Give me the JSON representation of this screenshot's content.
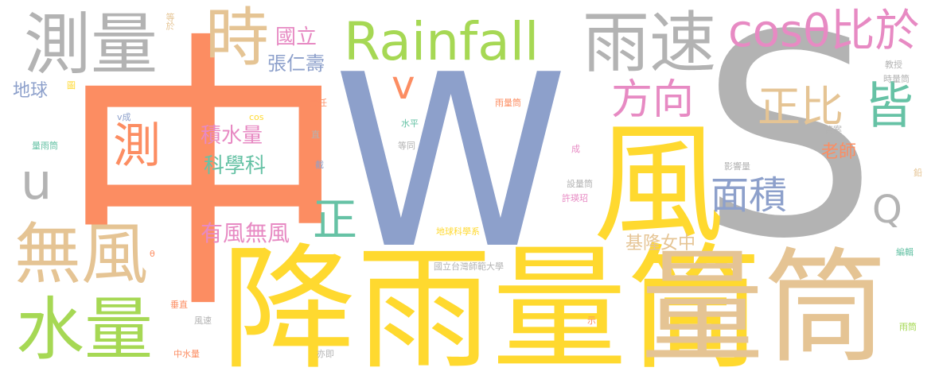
{
  "colors": {
    "orange": "#fc8d62",
    "blue": "#8da0cb",
    "gray": "#b3b3b3",
    "yellow": "#ffd92f",
    "tan": "#e5c494",
    "green": "#a6d854",
    "pink": "#e78ac3",
    "teal": "#66c2a5"
  },
  "words": {
    "zhong": "中",
    "W": "W",
    "S": "S",
    "jiangyu": "降雨量筒",
    "feng": "風",
    "liangtong": "量筒",
    "rainfall": "Rainfall",
    "yusu": "雨速",
    "celiang": "測量",
    "shi": "時",
    "cos_bi": "cosθ比於",
    "shuiliang": "水量",
    "wufeng": "無風",
    "u": "u",
    "Q": "Q",
    "ce": "測",
    "jie": "皆",
    "zhengbi": "正比",
    "fangxiang": "方向",
    "mianji": "面積",
    "zheng": "正",
    "youfeng": "有風無風",
    "jishui": "積水量",
    "kexue": "科學科",
    "guoli": "國立",
    "zhang": "張仁壽",
    "diqiu": "地球",
    "v": "v",
    "keelung": "基隆女中",
    "laoshi": "老師",
    "dengyu": "等於",
    "tu": "圖",
    "vcheng": "v成",
    "cos": "cos",
    "zeren": "責任",
    "zhi": "直",
    "jie2": "截",
    "yuliangtong": "雨量筒",
    "shuiping": "水平",
    "dengtong": "等同",
    "cheng": "成",
    "liangyutong": "量雨筒",
    "jiaoshou": "教授",
    "shiliangtong": "時量筒",
    "daan": "答案",
    "yingxiang": "影響量",
    "qian": "鉛",
    "sheliang": "設量筒",
    "xuying": "許瑛玿",
    "theta": "θ",
    "dqkx": "地球科學系",
    "ntnu": "國立台灣師範大學",
    "bianji": "編輯",
    "chuizhi": "垂直",
    "fengsu": "風速",
    "shi2": "示",
    "zhongshui": "中水量",
    "yiji": "亦即",
    "yutong": "雨筒"
  }
}
